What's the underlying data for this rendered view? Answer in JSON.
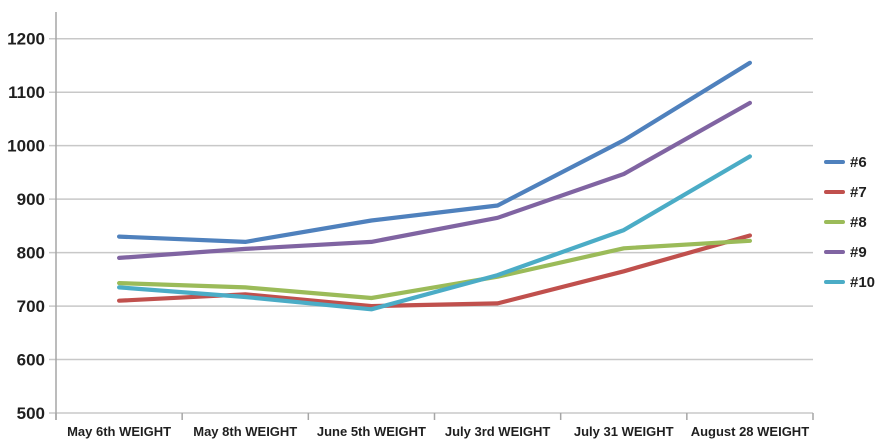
{
  "chart_data": {
    "type": "line",
    "title": "",
    "categories": [
      "May 6th WEIGHT",
      "May 8th WEIGHT",
      "June 5th WEIGHT",
      "July 3rd WEIGHT",
      "July 31 WEIGHT",
      "August 28 WEIGHT"
    ],
    "series": [
      {
        "name": "#6",
        "color": "#4F81BD",
        "values": [
          830,
          820,
          860,
          888,
          1010,
          1155
        ]
      },
      {
        "name": "#7",
        "color": "#C0504D",
        "values": [
          710,
          722,
          700,
          705,
          765,
          832
        ]
      },
      {
        "name": "#8",
        "color": "#9BBB59",
        "values": [
          743,
          735,
          715,
          755,
          808,
          822
        ]
      },
      {
        "name": "#9",
        "color": "#8064A2",
        "values": [
          790,
          807,
          820,
          865,
          947,
          1080
        ]
      },
      {
        "name": "#10",
        "color": "#4BACC6",
        "values": [
          735,
          717,
          694,
          758,
          842,
          980
        ]
      }
    ],
    "y_ticks": [
      1200,
      1100,
      1000,
      900,
      800,
      700,
      600,
      500
    ],
    "ylim": [
      500,
      1250
    ],
    "grid": true,
    "legend_position": "right",
    "colors": {
      "background": "#FFFFFF",
      "gridline": "#C8C8C8",
      "axis": "#A6A6A6",
      "text": "#1F1F1F"
    }
  }
}
